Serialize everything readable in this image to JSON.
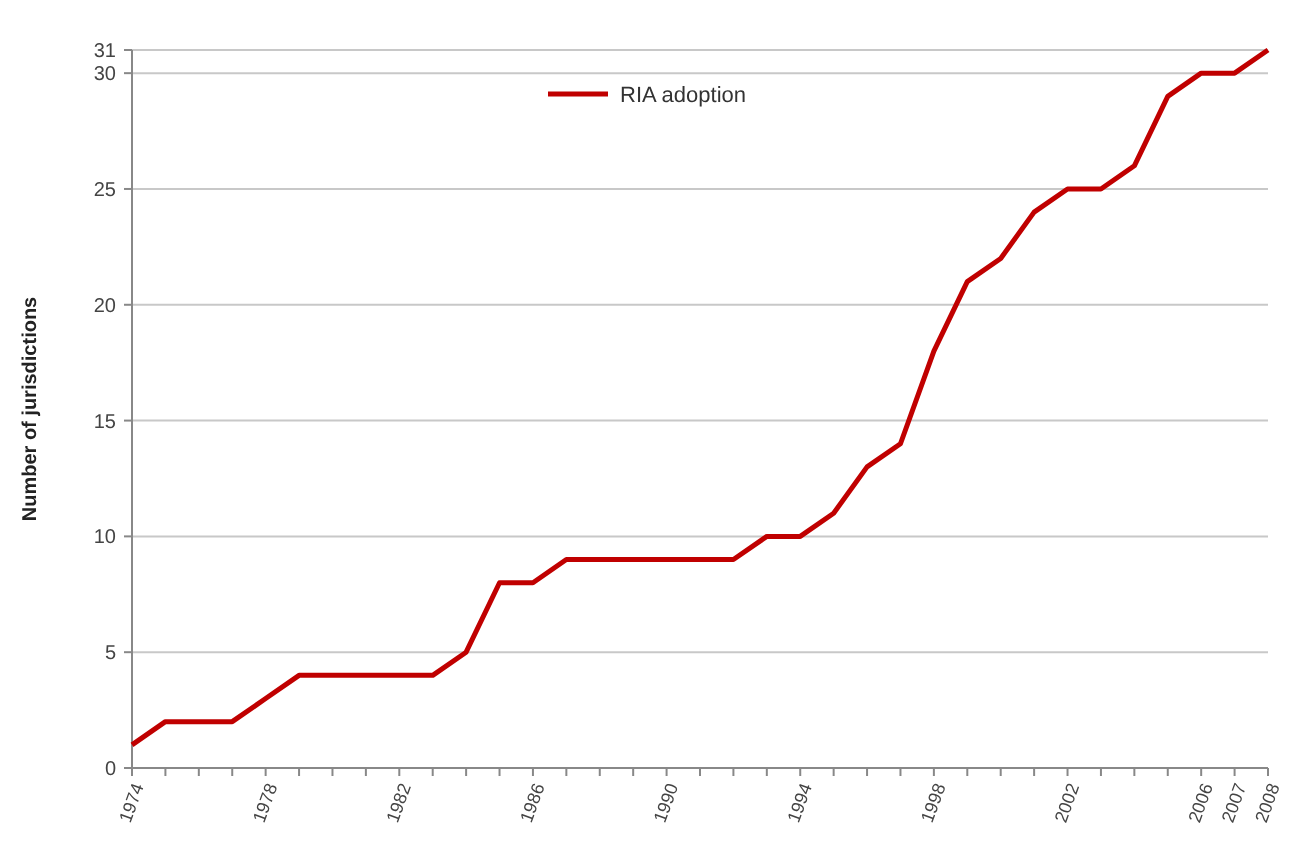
{
  "chart_data": {
    "type": "line",
    "ylabel": "Number of jurisdictions",
    "x": [
      1974,
      1975,
      1976,
      1977,
      1978,
      1979,
      1980,
      1981,
      1982,
      1983,
      1984,
      1985,
      1986,
      1987,
      1988,
      1989,
      1990,
      1991,
      1992,
      1993,
      1994,
      1995,
      1996,
      1997,
      1998,
      1999,
      2000,
      2001,
      2002,
      2003,
      2004,
      2005,
      2006,
      2007,
      2008
    ],
    "series": [
      {
        "name": "RIA adoption",
        "color": "#c00000",
        "values": [
          1,
          2,
          2,
          2,
          3,
          4,
          4,
          4,
          4,
          4,
          5,
          8,
          8,
          9,
          9,
          9,
          9,
          9,
          9,
          10,
          10,
          11,
          13,
          14,
          18,
          21,
          22,
          24,
          25,
          25,
          26,
          29,
          30,
          30,
          31
        ]
      }
    ],
    "xlim": [
      1974,
      2008
    ],
    "xticks": [
      1974,
      {
        "value": 1975,
        "label": null
      },
      {
        "value": 1976,
        "label": null
      },
      {
        "value": 1977,
        "label": null
      },
      1978,
      {
        "value": 1979,
        "label": null
      },
      {
        "value": 1980,
        "label": null
      },
      {
        "value": 1981,
        "label": null
      },
      1982,
      {
        "value": 1983,
        "label": null
      },
      {
        "value": 1984,
        "label": null
      },
      {
        "value": 1985,
        "label": null
      },
      1986,
      {
        "value": 1987,
        "label": null
      },
      {
        "value": 1988,
        "label": null
      },
      {
        "value": 1989,
        "label": null
      },
      1990,
      {
        "value": 1991,
        "label": null
      },
      {
        "value": 1992,
        "label": null
      },
      {
        "value": 1993,
        "label": null
      },
      1994,
      {
        "value": 1995,
        "label": null
      },
      {
        "value": 1996,
        "label": null
      },
      {
        "value": 1997,
        "label": null
      },
      1998,
      {
        "value": 1999,
        "label": null
      },
      {
        "value": 2000,
        "label": null
      },
      {
        "value": 2001,
        "label": null
      },
      2002,
      {
        "value": 2003,
        "label": null
      },
      {
        "value": 2004,
        "label": null
      },
      {
        "value": 2005,
        "label": null
      },
      2006,
      2007,
      2008
    ],
    "ylim": [
      0,
      31
    ],
    "yticks": [
      0,
      5,
      10,
      15,
      20,
      25,
      30,
      31
    ],
    "grid": "y",
    "legend": "top",
    "marker": "none",
    "line_style": "solid"
  }
}
